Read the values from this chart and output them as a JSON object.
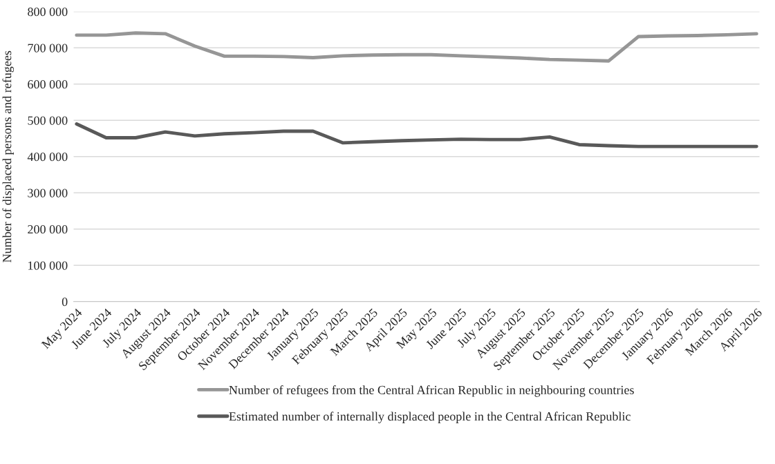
{
  "chart_data": {
    "type": "line",
    "ylabel": "Number of displaced persons and refugees",
    "categories": [
      "May 2024",
      "June 2024",
      "July 2024",
      "August 2024",
      "September 2024",
      "October 2024",
      "November 2024",
      "December 2024",
      "January 2025",
      "February 2025",
      "March 2025",
      "April 2025",
      "May 2025",
      "June 2025",
      "July 2025",
      "August 2025",
      "September 2025",
      "October 2025",
      "November 2025",
      "December 2025",
      "January 2026",
      "February 2026",
      "March 2026",
      "April 2026"
    ],
    "series": [
      {
        "name": "Number of refugees from the Central African Republic in neighbouring countries",
        "color": "#969696",
        "values": [
          735000,
          735000,
          741000,
          739000,
          705000,
          677000,
          677000,
          676000,
          673000,
          678000,
          680000,
          681000,
          681000,
          678000,
          675000,
          672000,
          668000,
          666000,
          664000,
          731000,
          733000,
          734000,
          736000,
          739000
        ]
      },
      {
        "name": "Estimated number of internally displaced people in the Central African Republic",
        "color": "#595959",
        "values": [
          490000,
          452000,
          452000,
          468000,
          457000,
          463000,
          466000,
          470000,
          470000,
          438000,
          441000,
          444000,
          446000,
          448000,
          447000,
          447000,
          454000,
          433000,
          430000,
          428000,
          428000,
          428000,
          428000,
          428000
        ]
      }
    ],
    "ylim": [
      0,
      800000
    ],
    "yticks": [
      {
        "value": 0,
        "label": "0"
      },
      {
        "value": 100000,
        "label": "100 000"
      },
      {
        "value": 200000,
        "label": "200 000"
      },
      {
        "value": 300000,
        "label": "300 000"
      },
      {
        "value": 400000,
        "label": "400 000"
      },
      {
        "value": 500000,
        "label": "500 000"
      },
      {
        "value": 600000,
        "label": "600 000"
      },
      {
        "value": 700000,
        "label": "700 000"
      },
      {
        "value": 800000,
        "label": "800 000"
      }
    ],
    "grid": "y",
    "legend": "bottom",
    "marker": "none",
    "line_style": "solid"
  }
}
